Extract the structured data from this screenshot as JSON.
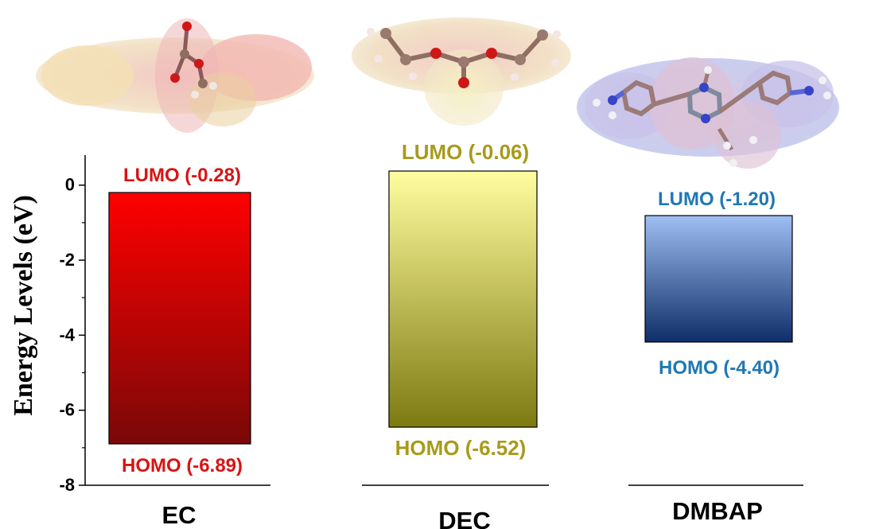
{
  "chart_data": {
    "type": "bar",
    "ylabel": "Energy Levels (eV)",
    "ylim": [
      -8,
      0.8
    ],
    "yticks": [
      "0",
      "-2",
      "-4",
      "-6",
      "-8"
    ],
    "ytick_values": [
      0,
      -2,
      -4,
      -6,
      -8
    ],
    "grid": false,
    "categories": [
      "EC",
      "DEC",
      "DMBAP"
    ],
    "series": [
      {
        "lumo": -0.28,
        "homo": -6.89,
        "lumo_label": "LUMO (-0.28)",
        "homo_label": "HOMO (-6.89)",
        "color": "#d81414",
        "fill_top": "#ff0000",
        "fill_bottom": "#7a0808"
      },
      {
        "lumo": -0.06,
        "homo": -6.52,
        "lumo_label": "LUMO (-0.06)",
        "homo_label": "HOMO (-6.52)",
        "color": "#a89a1b",
        "fill_top": "#fffd9f",
        "fill_bottom": "#7d7a11"
      },
      {
        "lumo": -1.2,
        "homo": -4.4,
        "lumo_label": "LUMO (-1.20)",
        "homo_label": "HOMO (-4.40)",
        "color": "#1f78b4",
        "fill_top": "#9fbef3",
        "fill_bottom": "#0f2d68"
      }
    ]
  },
  "icons": {
    "ec_molecule": "ec-molecule-icon",
    "dec_molecule": "dec-molecule-icon",
    "dmbap_molecule": "dmbap-molecule-icon"
  }
}
